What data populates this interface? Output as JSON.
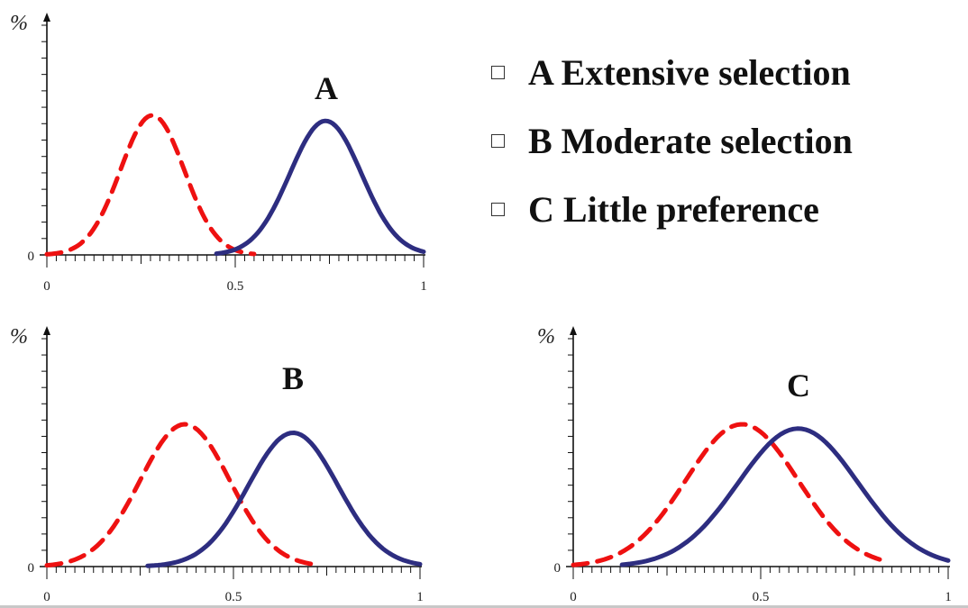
{
  "legend": {
    "items": [
      {
        "label": "A Extensive selection"
      },
      {
        "label": "B Moderate selection"
      },
      {
        "label": "C Little preference"
      }
    ]
  },
  "colors": {
    "dashed": "#ee1111",
    "solid": "#2d2d80",
    "axis": "#111111"
  },
  "chart_data": [
    {
      "type": "line",
      "title": "A",
      "ylabel": "%",
      "xlim": [
        0,
        1
      ],
      "xticks": [
        "0",
        "0.5",
        "1"
      ],
      "ytick_label": "0",
      "series": [
        {
          "style": "dashed",
          "mean": 0.28,
          "sd": 0.085,
          "peak": 1.0,
          "x_range": [
            0.0,
            0.55
          ]
        },
        {
          "style": "solid",
          "mean": 0.74,
          "sd": 0.095,
          "peak": 0.96,
          "x_range": [
            0.45,
            1.0
          ]
        }
      ]
    },
    {
      "type": "line",
      "title": "B",
      "ylabel": "%",
      "xlim": [
        0,
        1
      ],
      "xticks": [
        "0",
        "0.5",
        "1"
      ],
      "ytick_label": "0",
      "series": [
        {
          "style": "dashed",
          "mean": 0.37,
          "sd": 0.12,
          "peak": 1.0,
          "x_range": [
            0.0,
            0.72
          ]
        },
        {
          "style": "solid",
          "mean": 0.66,
          "sd": 0.12,
          "peak": 0.94,
          "x_range": [
            0.27,
            1.0
          ]
        }
      ]
    },
    {
      "type": "line",
      "title": "C",
      "ylabel": "%",
      "xlim": [
        0,
        1
      ],
      "xticks": [
        "0",
        "0.5",
        "1"
      ],
      "ytick_label": "0",
      "series": [
        {
          "style": "dashed",
          "mean": 0.45,
          "sd": 0.15,
          "peak": 1.0,
          "x_range": [
            0.0,
            0.83
          ]
        },
        {
          "style": "solid",
          "mean": 0.6,
          "sd": 0.16,
          "peak": 0.97,
          "x_range": [
            0.13,
            1.0
          ]
        }
      ]
    }
  ]
}
